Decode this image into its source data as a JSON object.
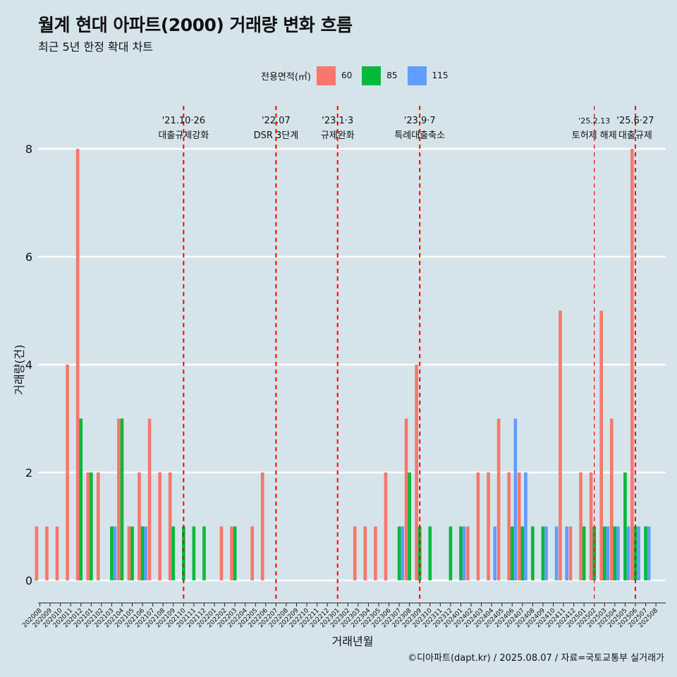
{
  "title": "월계 현대 아파트(2000) 거래량 변화 흐름",
  "subtitle": "최근 5년 한정 확대 차트",
  "caption": "©디아파트(dapt.kr) / 2025.08.07 / 자료=국토교통부 실거래가",
  "legend": {
    "title": "전용면적(㎡)",
    "items": [
      {
        "label": "60",
        "color": "#f8766d"
      },
      {
        "label": "85",
        "color": "#00ba38"
      },
      {
        "label": "115",
        "color": "#619cff"
      }
    ]
  },
  "chart_data": {
    "type": "bar",
    "xlabel": "거래년월",
    "ylabel": "거래량(건)",
    "ylim": [
      0,
      8.8
    ],
    "yticks": [
      0,
      2,
      4,
      6,
      8
    ],
    "grid": true,
    "legend_position": "top",
    "categories": [
      "202008",
      "202009",
      "202010",
      "202011",
      "202012",
      "202101",
      "202102",
      "202103",
      "202104",
      "202105",
      "202106",
      "202107",
      "202108",
      "202109",
      "202110",
      "202111",
      "202112",
      "202201",
      "202202",
      "202203",
      "202204",
      "202205",
      "202206",
      "202207",
      "202208",
      "202209",
      "202210",
      "202211",
      "202212",
      "202301",
      "202302",
      "202303",
      "202304",
      "202305",
      "202306",
      "202307",
      "202308",
      "202309",
      "202310",
      "202311",
      "202312",
      "202401",
      "202402",
      "202403",
      "202404",
      "202405",
      "202406",
      "202407",
      "202408",
      "202409",
      "202410",
      "202411",
      "202412",
      "202501",
      "202502",
      "202503",
      "202504",
      "202505",
      "202506",
      "202507",
      "202508"
    ],
    "series": [
      {
        "name": "60",
        "values": [
          1,
          1,
          1,
          4,
          8,
          2,
          2,
          0,
          3,
          1,
          2,
          3,
          2,
          2,
          0,
          0,
          0,
          0,
          1,
          1,
          0,
          1,
          2,
          0,
          0,
          0,
          0,
          0,
          0,
          0,
          0,
          1,
          1,
          1,
          2,
          0,
          3,
          4,
          0,
          0,
          0,
          0,
          1,
          2,
          2,
          3,
          2,
          2,
          0,
          0,
          0,
          5,
          1,
          2,
          2,
          5,
          3,
          0,
          8,
          0,
          0
        ]
      },
      {
        "name": "85",
        "values": [
          0,
          0,
          0,
          0,
          3,
          2,
          0,
          1,
          3,
          1,
          1,
          0,
          0,
          1,
          1,
          1,
          1,
          0,
          0,
          1,
          0,
          0,
          0,
          0,
          0,
          0,
          0,
          0,
          0,
          0,
          0,
          0,
          0,
          0,
          0,
          1,
          2,
          1,
          1,
          0,
          1,
          1,
          0,
          0,
          0,
          0,
          1,
          1,
          1,
          1,
          0,
          0,
          0,
          1,
          1,
          1,
          1,
          2,
          1,
          1,
          0
        ]
      },
      {
        "name": "115",
        "values": [
          0,
          0,
          0,
          0,
          0,
          0,
          0,
          1,
          0,
          0,
          1,
          0,
          0,
          0,
          0,
          0,
          0,
          0,
          0,
          0,
          0,
          0,
          0,
          0,
          0,
          0,
          0,
          0,
          0,
          0,
          0,
          0,
          0,
          0,
          0,
          1,
          0,
          0,
          0,
          0,
          0,
          1,
          0,
          0,
          1,
          0,
          3,
          2,
          0,
          1,
          1,
          1,
          0,
          0,
          0,
          1,
          1,
          1,
          1,
          1,
          0
        ]
      }
    ],
    "events": [
      {
        "date_label": "'21.10·26",
        "text": "대출규제강화",
        "category": "202110"
      },
      {
        "date_label": "'22.07",
        "text": "DSR 3단계",
        "category": "202207"
      },
      {
        "date_label": "'23.1·3",
        "text": "규제완화",
        "category": "202301"
      },
      {
        "date_label": "'23.9·7",
        "text": "특례대출축소",
        "category": "202309"
      },
      {
        "date_label": "'25.2.13",
        "text": "토허제 해제",
        "category": "202502"
      },
      {
        "date_label": "'25.6·27",
        "text": "대출규제",
        "category": "202506"
      }
    ]
  }
}
